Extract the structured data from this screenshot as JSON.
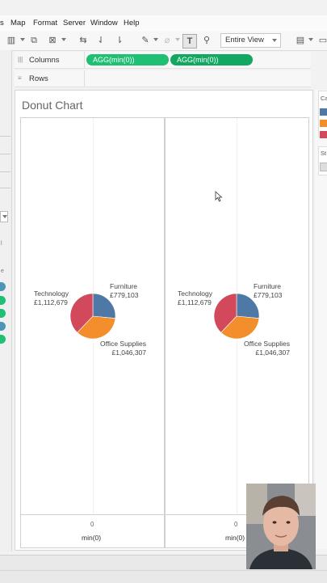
{
  "menu": [
    "s",
    "Map",
    "Format",
    "Server",
    "Window",
    "Help"
  ],
  "toolbar": {
    "fit_value": "Entire View"
  },
  "shelves": {
    "columns_label": "Columns",
    "rows_label": "Rows",
    "column_pills": [
      "AGG(min(0))",
      "AGG(min(0))"
    ]
  },
  "left_fragments": {
    "f1": "l",
    "f2": "e"
  },
  "sheet": {
    "title": "Donut Chart"
  },
  "panes": [
    {
      "slices": [
        {
          "category": "Furniture",
          "value": "£779,103",
          "amount": 779103,
          "color": "#4e79a7"
        },
        {
          "category": "Office Supplies",
          "value": "£1,046,307",
          "amount": 1046307,
          "color": "#f28e2b"
        },
        {
          "category": "Technology",
          "value": "£1,112,679",
          "amount": 1112679,
          "color": "#d1495b"
        }
      ],
      "axis_tick": "0",
      "axis_title": "min(0)"
    },
    {
      "slices": [
        {
          "category": "Furniture",
          "value": "£779,103",
          "amount": 779103,
          "color": "#4e79a7"
        },
        {
          "category": "Office Supplies",
          "value": "£1,046,307",
          "amount": 1046307,
          "color": "#f28e2b"
        },
        {
          "category": "Technology",
          "value": "£1,112,679",
          "amount": 1112679,
          "color": "#d1495b"
        }
      ],
      "axis_tick": "0",
      "axis_title": "min(0)"
    }
  ],
  "legend": {
    "title_fragment": "Ca",
    "second_title_fragment": "St"
  },
  "colors": {
    "pill_green": "#1fbf74",
    "pill_green_dark": "#13a862",
    "furniture": "#4e79a7",
    "office": "#f28e2b",
    "technology": "#d1495b"
  }
}
